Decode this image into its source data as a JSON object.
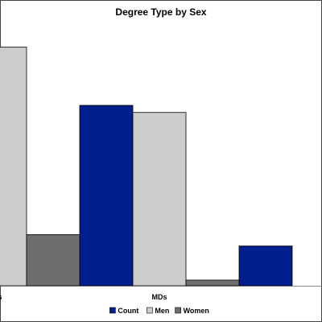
{
  "chart_data": {
    "type": "bar",
    "title": "Degree Type by Sex",
    "categories": [
      "s",
      "MDs",
      ""
    ],
    "series": [
      {
        "name": "Count",
        "color": "#001f8c",
        "values": [
          null,
          12700,
          2800
        ]
      },
      {
        "name": "Men",
        "color": "#cccccc",
        "values": [
          16800,
          12200,
          null
        ]
      },
      {
        "name": "Women",
        "color": "#6e6e6e",
        "values": [
          3600,
          400,
          null
        ]
      }
    ],
    "ylim": [
      0,
      17000
    ],
    "grid": false,
    "legend_position": "bottom"
  }
}
